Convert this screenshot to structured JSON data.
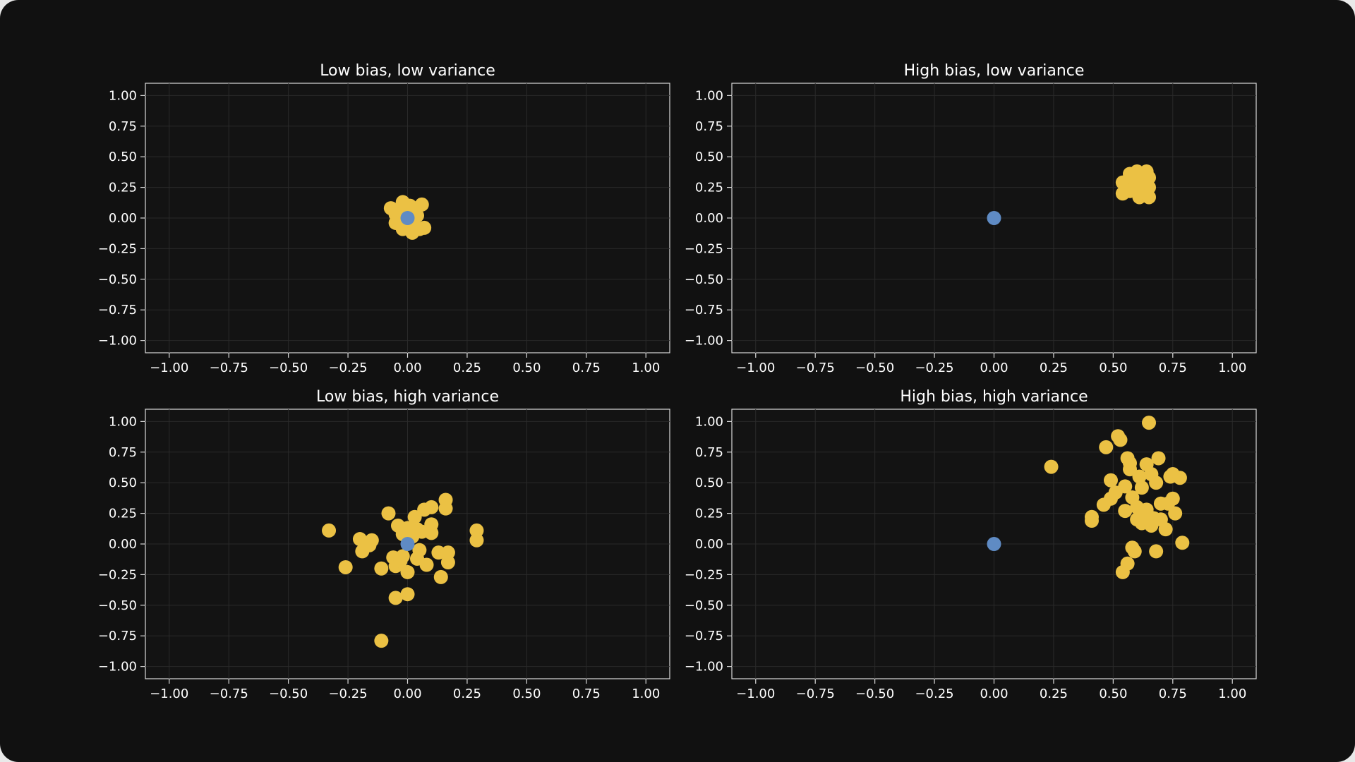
{
  "colors": {
    "background": "#111111",
    "samples": "#ebc144",
    "target": "#5f8bc4",
    "text": "#ffffff",
    "axes_edge": "#d9d9d9"
  },
  "chart_data": [
    {
      "type": "scatter",
      "title": "Low bias, low variance",
      "xlim": [
        -1.1,
        1.1
      ],
      "ylim": [
        -1.1,
        1.1
      ],
      "xticks": [
        "−1.00",
        "−0.75",
        "−0.50",
        "−0.25",
        "0.00",
        "0.25",
        "0.50",
        "0.75",
        "1.00"
      ],
      "yticks": [
        "1.00",
        "0.75",
        "0.50",
        "0.25",
        "0.00",
        "−0.25",
        "−0.50",
        "−0.75",
        "−1.00"
      ],
      "grid": true,
      "target": {
        "x": 0.0,
        "y": 0.0
      },
      "samples": [
        [
          -0.07,
          0.08
        ],
        [
          -0.04,
          0.07
        ],
        [
          -0.02,
          0.13
        ],
        [
          0.01,
          0.1
        ],
        [
          0.06,
          0.11
        ],
        [
          -0.05,
          0.03
        ],
        [
          -0.03,
          0.0
        ],
        [
          0.02,
          0.03
        ],
        [
          0.04,
          0.02
        ],
        [
          -0.05,
          -0.04
        ],
        [
          -0.02,
          -0.06
        ],
        [
          0.01,
          -0.05
        ],
        [
          0.03,
          -0.07
        ],
        [
          0.05,
          -0.09
        ],
        [
          0.07,
          -0.08
        ],
        [
          0.02,
          -0.12
        ],
        [
          -0.02,
          -0.09
        ],
        [
          0.0,
          -0.02
        ],
        [
          -0.01,
          0.05
        ],
        [
          0.03,
          0.08
        ]
      ]
    },
    {
      "type": "scatter",
      "title": "High bias, low variance",
      "xlim": [
        -1.1,
        1.1
      ],
      "ylim": [
        -1.1,
        1.1
      ],
      "xticks": [
        "−1.00",
        "−0.75",
        "−0.50",
        "−0.25",
        "0.00",
        "0.25",
        "0.50",
        "0.75",
        "1.00"
      ],
      "yticks": [
        "1.00",
        "0.75",
        "0.50",
        "0.25",
        "0.00",
        "−0.25",
        "−0.50",
        "−0.75",
        "−1.00"
      ],
      "grid": true,
      "target": {
        "x": 0.0,
        "y": 0.0
      },
      "samples": [
        [
          0.54,
          0.29
        ],
        [
          0.57,
          0.36
        ],
        [
          0.6,
          0.38
        ],
        [
          0.64,
          0.38
        ],
        [
          0.63,
          0.32
        ],
        [
          0.65,
          0.33
        ],
        [
          0.57,
          0.26
        ],
        [
          0.6,
          0.27
        ],
        [
          0.63,
          0.25
        ],
        [
          0.65,
          0.25
        ],
        [
          0.54,
          0.2
        ],
        [
          0.57,
          0.22
        ],
        [
          0.61,
          0.17
        ],
        [
          0.65,
          0.17
        ],
        [
          0.59,
          0.3
        ],
        [
          0.62,
          0.21
        ],
        [
          0.58,
          0.33
        ],
        [
          0.6,
          0.23
        ]
      ]
    },
    {
      "type": "scatter",
      "title": "Low bias, high variance",
      "xlim": [
        -1.1,
        1.1
      ],
      "ylim": [
        -1.1,
        1.1
      ],
      "xticks": [
        "−1.00",
        "−0.75",
        "−0.50",
        "−0.25",
        "0.00",
        "0.25",
        "0.50",
        "0.75",
        "1.00"
      ],
      "yticks": [
        "1.00",
        "0.75",
        "0.50",
        "0.25",
        "0.00",
        "−0.25",
        "−0.50",
        "−0.75",
        "−1.00"
      ],
      "grid": true,
      "target": {
        "x": 0.0,
        "y": 0.0
      },
      "samples": [
        [
          -0.33,
          0.11
        ],
        [
          -0.26,
          -0.19
        ],
        [
          -0.2,
          0.04
        ],
        [
          -0.19,
          -0.06
        ],
        [
          -0.16,
          -0.01
        ],
        [
          -0.15,
          0.03
        ],
        [
          -0.11,
          -0.2
        ],
        [
          -0.08,
          0.25
        ],
        [
          -0.06,
          -0.11
        ],
        [
          -0.05,
          -0.18
        ],
        [
          -0.04,
          0.15
        ],
        [
          -0.02,
          0.08
        ],
        [
          0.0,
          0.13
        ],
        [
          0.02,
          0.06
        ],
        [
          0.03,
          0.22
        ],
        [
          0.04,
          0.12
        ],
        [
          0.05,
          -0.05
        ],
        [
          0.06,
          0.1
        ],
        [
          0.07,
          0.28
        ],
        [
          0.08,
          -0.17
        ],
        [
          0.1,
          0.3
        ],
        [
          0.1,
          0.16
        ],
        [
          0.1,
          0.09
        ],
        [
          0.13,
          -0.07
        ],
        [
          0.16,
          0.36
        ],
        [
          0.16,
          0.29
        ],
        [
          0.17,
          -0.15
        ],
        [
          0.17,
          -0.07
        ],
        [
          0.29,
          0.11
        ],
        [
          0.29,
          0.03
        ],
        [
          0.14,
          -0.27
        ],
        [
          0.0,
          -0.23
        ],
        [
          -0.03,
          -0.14
        ],
        [
          0.0,
          -0.41
        ],
        [
          -0.05,
          -0.44
        ],
        [
          -0.11,
          -0.79
        ],
        [
          0.04,
          -0.12
        ],
        [
          -0.02,
          -0.1
        ]
      ]
    },
    {
      "type": "scatter",
      "title": "High bias, high variance",
      "xlim": [
        -1.1,
        1.1
      ],
      "ylim": [
        -1.1,
        1.1
      ],
      "xticks": [
        "−1.00",
        "−0.75",
        "−0.50",
        "−0.25",
        "0.00",
        "0.25",
        "0.50",
        "0.75",
        "1.00"
      ],
      "yticks": [
        "1.00",
        "0.75",
        "0.50",
        "0.25",
        "0.00",
        "−0.25",
        "−0.50",
        "−0.75",
        "−1.00"
      ],
      "grid": true,
      "target": {
        "x": 0.0,
        "y": 0.0
      },
      "samples": [
        [
          0.24,
          0.63
        ],
        [
          0.41,
          0.19
        ],
        [
          0.41,
          0.22
        ],
        [
          0.46,
          0.32
        ],
        [
          0.47,
          0.79
        ],
        [
          0.49,
          0.52
        ],
        [
          0.49,
          0.37
        ],
        [
          0.52,
          0.88
        ],
        [
          0.53,
          0.85
        ],
        [
          0.54,
          -0.23
        ],
        [
          0.55,
          0.47
        ],
        [
          0.55,
          0.27
        ],
        [
          0.56,
          -0.16
        ],
        [
          0.56,
          0.7
        ],
        [
          0.57,
          0.66
        ],
        [
          0.57,
          0.61
        ],
        [
          0.58,
          0.38
        ],
        [
          0.58,
          -0.03
        ],
        [
          0.59,
          -0.06
        ],
        [
          0.6,
          0.2
        ],
        [
          0.61,
          0.55
        ],
        [
          0.62,
          0.46
        ],
        [
          0.62,
          0.17
        ],
        [
          0.63,
          0.24
        ],
        [
          0.64,
          0.65
        ],
        [
          0.64,
          0.28
        ],
        [
          0.65,
          0.99
        ],
        [
          0.66,
          0.57
        ],
        [
          0.66,
          0.15
        ],
        [
          0.67,
          0.21
        ],
        [
          0.68,
          0.5
        ],
        [
          0.68,
          -0.06
        ],
        [
          0.69,
          0.7
        ],
        [
          0.7,
          0.33
        ],
        [
          0.7,
          0.2
        ],
        [
          0.72,
          0.12
        ],
        [
          0.73,
          0.33
        ],
        [
          0.74,
          0.55
        ],
        [
          0.75,
          0.57
        ],
        [
          0.75,
          0.37
        ],
        [
          0.76,
          0.25
        ],
        [
          0.78,
          0.54
        ],
        [
          0.79,
          0.01
        ],
        [
          0.51,
          0.42
        ],
        [
          0.6,
          0.3
        ]
      ]
    }
  ]
}
